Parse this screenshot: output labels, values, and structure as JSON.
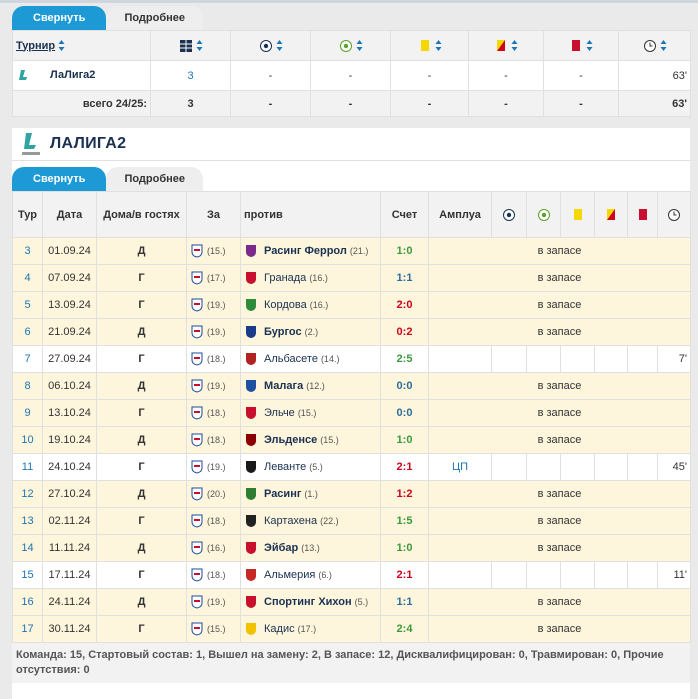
{
  "summary": {
    "tabs": [
      "Свернуть",
      "Подробнее"
    ],
    "tournament_header": "Турнир",
    "row": {
      "competition": "ЛаЛига2",
      "cells": [
        3,
        "-",
        "-",
        "-",
        "-",
        "-",
        "63'"
      ]
    },
    "total": {
      "label": "всего 24/25:",
      "cells": [
        3,
        "-",
        "-",
        "-",
        "-",
        "-",
        "63'"
      ]
    }
  },
  "league": {
    "title": "ЛАЛИГА2",
    "tabs": [
      "Свернуть",
      "Подробнее"
    ],
    "columns": [
      "Тур",
      "Дата",
      "Дома/в гостях",
      "За",
      "против",
      "Счет",
      "Амплуа"
    ],
    "matches": [
      {
        "round": 3,
        "date": "01.09.24",
        "venue": "Д",
        "team_rank": "(15.)",
        "opponent": "Расинг Феррол",
        "opponent_rank": "(21.)",
        "score": "1:0",
        "score_color": "#3c9a3c",
        "status": "в запасе"
      },
      {
        "round": 4,
        "date": "07.09.24",
        "venue": "Г",
        "team_rank": "(17.)",
        "opponent": "Гранада",
        "opponent_rank": "(16.)",
        "score": "1:1",
        "score_color": "#2d6d9a",
        "status": "в запасе"
      },
      {
        "round": 5,
        "date": "13.09.24",
        "venue": "Г",
        "team_rank": "(19.)",
        "opponent": "Кордова",
        "opponent_rank": "(16.)",
        "score": "2:0",
        "score_color": "#d0021b",
        "status": "в запасе"
      },
      {
        "round": 6,
        "date": "21.09.24",
        "venue": "Д",
        "team_rank": "(19.)",
        "opponent": "Бургос",
        "opponent_rank": "(2.)",
        "score": "0:2",
        "score_color": "#d0021b",
        "status": "в запасе"
      },
      {
        "round": 7,
        "date": "27.09.24",
        "venue": "Г",
        "team_rank": "(18.)",
        "opponent": "Альбасете",
        "opponent_rank": "(14.)",
        "score": "2:5",
        "score_color": "#3c9a3c",
        "minutes": "7'"
      },
      {
        "round": 8,
        "date": "06.10.24",
        "venue": "Д",
        "team_rank": "(19.)",
        "opponent": "Малага",
        "opponent_rank": "(12.)",
        "score": "0:0",
        "score_color": "#2d6d9a",
        "status": "в запасе"
      },
      {
        "round": 9,
        "date": "13.10.24",
        "venue": "Г",
        "team_rank": "(18.)",
        "opponent": "Эльче",
        "opponent_rank": "(15.)",
        "score": "0:0",
        "score_color": "#2d6d9a",
        "status": "в запасе"
      },
      {
        "round": 10,
        "date": "19.10.24",
        "venue": "Д",
        "team_rank": "(18.)",
        "opponent": "Эльденсе",
        "opponent_rank": "(15.)",
        "score": "1:0",
        "score_color": "#3c9a3c",
        "status": "в запасе"
      },
      {
        "round": 11,
        "date": "24.10.24",
        "venue": "Г",
        "team_rank": "(19.)",
        "opponent": "Леванте",
        "opponent_rank": "(5.)",
        "score": "2:1",
        "score_color": "#d0021b",
        "role": "ЦП",
        "minutes": "45'"
      },
      {
        "round": 12,
        "date": "27.10.24",
        "venue": "Д",
        "team_rank": "(20.)",
        "opponent": "Расинг",
        "opponent_rank": "(1.)",
        "score": "1:2",
        "score_color": "#d0021b",
        "status": "в запасе"
      },
      {
        "round": 13,
        "date": "02.11.24",
        "venue": "Г",
        "team_rank": "(18.)",
        "opponent": "Картахена",
        "opponent_rank": "(22.)",
        "score": "1:5",
        "score_color": "#3c9a3c",
        "status": "в запасе"
      },
      {
        "round": 14,
        "date": "11.11.24",
        "venue": "Д",
        "team_rank": "(16.)",
        "opponent": "Эйбар",
        "opponent_rank": "(13.)",
        "score": "1:0",
        "score_color": "#3c9a3c",
        "status": "в запасе"
      },
      {
        "round": 15,
        "date": "17.11.24",
        "venue": "Г",
        "team_rank": "(18.)",
        "opponent": "Альмерия",
        "opponent_rank": "(6.)",
        "score": "2:1",
        "score_color": "#d0021b",
        "minutes": "11'"
      },
      {
        "round": 16,
        "date": "24.11.24",
        "venue": "Д",
        "team_rank": "(19.)",
        "opponent": "Спортинг Хихон",
        "opponent_rank": "(5.)",
        "score": "1:1",
        "score_color": "#2d6d9a",
        "status": "в запасе"
      },
      {
        "round": 17,
        "date": "30.11.24",
        "venue": "Г",
        "team_rank": "(15.)",
        "opponent": "Кадис",
        "opponent_rank": "(17.)",
        "score": "2:4",
        "score_color": "#3c9a3c",
        "status": "в запасе"
      }
    ],
    "footer": "Команда: 15, Стартовый состав: 1, Вышел на замену: 2, В запасе: 12, Дисквалифицирован: 0, Травмирован: 0, Прочие отсутствия: 0"
  }
}
